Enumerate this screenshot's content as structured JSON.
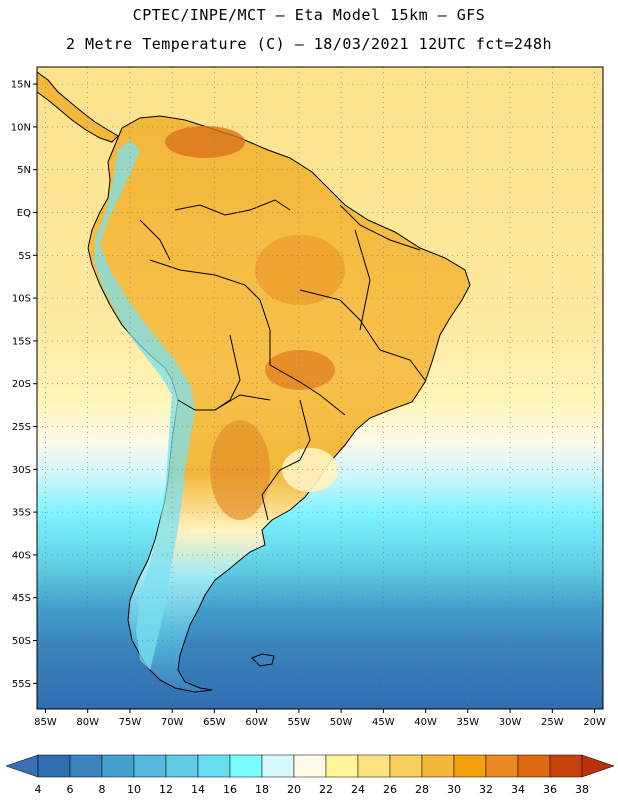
{
  "header": {
    "line1": "CPTEC/INPE/MCT –  Eta Model 15km – GFS",
    "line2": "2 Metre Temperature (C) – 18/03/2021 12UTC fct=248h"
  },
  "map": {
    "variable": "2 Metre Temperature",
    "units": "C",
    "lon_range": [
      -86,
      -19
    ],
    "lat_range": [
      17,
      -58
    ],
    "lat_ticks": [
      {
        "value": 15,
        "label": "15N"
      },
      {
        "value": 10,
        "label": "10N"
      },
      {
        "value": 5,
        "label": "5N"
      },
      {
        "value": 0,
        "label": "EQ"
      },
      {
        "value": -5,
        "label": "5S"
      },
      {
        "value": -10,
        "label": "10S"
      },
      {
        "value": -15,
        "label": "15S"
      },
      {
        "value": -20,
        "label": "20S"
      },
      {
        "value": -25,
        "label": "25S"
      },
      {
        "value": -30,
        "label": "30S"
      },
      {
        "value": -35,
        "label": "35S"
      },
      {
        "value": -40,
        "label": "40S"
      },
      {
        "value": -45,
        "label": "45S"
      },
      {
        "value": -50,
        "label": "50S"
      },
      {
        "value": -55,
        "label": "55S"
      }
    ],
    "lon_ticks": [
      {
        "value": -85,
        "label": "85W"
      },
      {
        "value": -80,
        "label": "80W"
      },
      {
        "value": -75,
        "label": "75W"
      },
      {
        "value": -70,
        "label": "70W"
      },
      {
        "value": -65,
        "label": "65W"
      },
      {
        "value": -60,
        "label": "60W"
      },
      {
        "value": -55,
        "label": "55W"
      },
      {
        "value": -50,
        "label": "50W"
      },
      {
        "value": -45,
        "label": "45W"
      },
      {
        "value": -40,
        "label": "40W"
      },
      {
        "value": -35,
        "label": "35W"
      },
      {
        "value": -30,
        "label": "30W"
      },
      {
        "value": -25,
        "label": "25W"
      },
      {
        "value": -20,
        "label": "20W"
      }
    ]
  },
  "colorbar": {
    "labels": [
      "4",
      "6",
      "8",
      "10",
      "12",
      "14",
      "16",
      "18",
      "20",
      "22",
      "24",
      "26",
      "28",
      "30",
      "32",
      "34",
      "36",
      "38"
    ],
    "colors": [
      "#2f6eb0",
      "#3a83be",
      "#44a0cc",
      "#55b8dc",
      "#5fcde2",
      "#67dff0",
      "#7afcff",
      "#d4f7fb",
      "#fff9e6",
      "#fff69a",
      "#fce27e",
      "#f9cf5c",
      "#f3b83a",
      "#f2a10c",
      "#ea8a22",
      "#e06a10",
      "#c7420b"
    ],
    "left_arrow_color": "#3a6fb5",
    "right_arrow_color": "#b8330b"
  }
}
